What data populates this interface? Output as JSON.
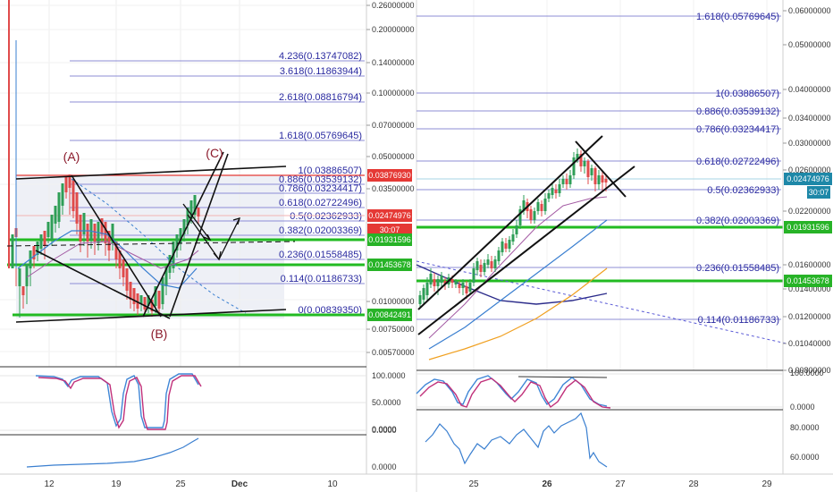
{
  "colors": {
    "fib_line": "#8c8cd6",
    "fib_text": "#2a2aa0",
    "green_level": "#22bb22",
    "up_candle": "#2e9e57",
    "down_candle": "#e04b4b",
    "trendline": "#111111",
    "wave_label": "#8b1a2b",
    "ma_blue": "#3a7fd0",
    "ma_orange": "#f0a020",
    "ma_navy": "#2b2b8a",
    "ma_purple": "#a35aa3",
    "stoch_k": "#3f86d6",
    "stoch_d": "#c0307a",
    "price_tag_red": "#e53935",
    "price_tag_teal": "#1e88a8",
    "price_tag_green": "#27b327"
  },
  "left_chart": {
    "wave_labels": [
      "(A)",
      "(B)",
      "(C)"
    ],
    "fib_levels": [
      {
        "label": "4.236(0.13747082)"
      },
      {
        "label": "3.618(0.11863944)"
      },
      {
        "label": "2.618(0.08816794)"
      },
      {
        "label": "1.618(0.05769645)"
      },
      {
        "label": "1(0.03886507)"
      },
      {
        "label": "0.886(0.03539132)"
      },
      {
        "label": "0.786(0.03234417)"
      },
      {
        "label": "0.618(0.02722496)"
      },
      {
        "label": "0.5(0.02362933)"
      },
      {
        "label": "0.382(0.02003369)"
      },
      {
        "label": "0.236(0.01558485)"
      },
      {
        "label": "0.114(0.01186733)"
      },
      {
        "label": "0(0.00839350)"
      }
    ],
    "y_axis_ticks": [
      "0.26000000",
      "0.20000000",
      "0.14000000",
      "0.10000000",
      "0.07000000",
      "0.05000000",
      "0.03500000",
      "0.01000000",
      "0.00750000",
      "0.00570000"
    ],
    "price_tags": [
      {
        "text": "0.03876930",
        "color": "#e53935"
      },
      {
        "text": "0.02474976",
        "color": "#e53935"
      },
      {
        "text": "30:07",
        "color": "#e53935"
      },
      {
        "text": "0.01931596",
        "color": "#27b327"
      },
      {
        "text": "0.01453678",
        "color": "#27b327"
      },
      {
        "text": "0.00842491",
        "color": "#27b327"
      }
    ],
    "indicator1_ticks": [
      "100.0000",
      "50.0000",
      "0.0000"
    ],
    "indicator2_ticks": [
      "0.0000",
      "0.0000"
    ],
    "x_axis_ticks": [
      "12",
      "19",
      "25",
      "Dec",
      "10"
    ]
  },
  "right_chart": {
    "fib_levels": [
      {
        "label": "1.618(0.05769645)"
      },
      {
        "label": "1(0.03886507)"
      },
      {
        "label": "0.886(0.03539132)"
      },
      {
        "label": "0.786(0.03234417)"
      },
      {
        "label": "0.618(0.02722496)"
      },
      {
        "label": "0.5(0.02362933)"
      },
      {
        "label": "0.382(0.02003369)"
      },
      {
        "label": "0.236(0.01558485)"
      },
      {
        "label": "0.114(0.01186733)"
      }
    ],
    "y_axis_ticks": [
      "0.06000000",
      "0.05000000",
      "0.04000000",
      "0.03400000",
      "0.03000000",
      "0.02600000",
      "0.02200000",
      "0.01600000",
      "0.01400000",
      "0.01200000",
      "0.01040000",
      "0.00800000"
    ],
    "price_tags": [
      {
        "text": "0.02474976",
        "color": "#1e88a8"
      },
      {
        "text": "30:07",
        "color": "#1e88a8"
      },
      {
        "text": "0.01931596",
        "color": "#27b327"
      },
      {
        "text": "0.01453678",
        "color": "#27b327"
      }
    ],
    "indicator1_ticks": [
      "100.0000",
      "0.0000"
    ],
    "indicator2_ticks": [
      "80.0000",
      "60.0000"
    ],
    "x_axis_ticks": [
      "25",
      "26",
      "27",
      "28",
      "29"
    ]
  },
  "chart_data": [
    {
      "type": "candlestick",
      "title": "",
      "scale": "log",
      "x_ticks": [
        "12",
        "19",
        "25",
        "Dec",
        "10"
      ],
      "ylim": [
        0.0057,
        0.26
      ],
      "fib_extension": [
        {
          "ratio": 4.236,
          "value": 0.13747082
        },
        {
          "ratio": 3.618,
          "value": 0.11863944
        },
        {
          "ratio": 2.618,
          "value": 0.08816794
        },
        {
          "ratio": 1.618,
          "value": 0.05769645
        },
        {
          "ratio": 1,
          "value": 0.03886507
        },
        {
          "ratio": 0.886,
          "value": 0.03539132
        },
        {
          "ratio": 0.786,
          "value": 0.03234417
        },
        {
          "ratio": 0.618,
          "value": 0.02722496
        },
        {
          "ratio": 0.5,
          "value": 0.02362933
        },
        {
          "ratio": 0.382,
          "value": 0.02003369
        },
        {
          "ratio": 0.236,
          "value": 0.01558485
        },
        {
          "ratio": 0.114,
          "value": 0.01186733
        },
        {
          "ratio": 0,
          "value": 0.0083935
        }
      ],
      "horizontal_levels": [
        0.0387693,
        0.02474976,
        0.01931596,
        0.01453678,
        0.00842491
      ],
      "last_price": 0.02474976,
      "wave_points": [
        "(A)",
        "(B)",
        "(C)"
      ]
    },
    {
      "type": "candlestick",
      "title": "",
      "scale": "log",
      "x_ticks": [
        "25",
        "26",
        "27",
        "28",
        "29"
      ],
      "ylim": [
        0.008,
        0.06
      ],
      "fib_extension": [
        {
          "ratio": 1.618,
          "value": 0.05769645
        },
        {
          "ratio": 1,
          "value": 0.03886507
        },
        {
          "ratio": 0.886,
          "value": 0.03539132
        },
        {
          "ratio": 0.786,
          "value": 0.03234417
        },
        {
          "ratio": 0.618,
          "value": 0.02722496
        },
        {
          "ratio": 0.5,
          "value": 0.02362933
        },
        {
          "ratio": 0.382,
          "value": 0.02003369
        },
        {
          "ratio": 0.236,
          "value": 0.01558485
        },
        {
          "ratio": 0.114,
          "value": 0.01186733
        }
      ],
      "horizontal_levels": [
        0.02474976,
        0.01931596,
        0.01453678
      ],
      "last_price": 0.02474976
    }
  ]
}
